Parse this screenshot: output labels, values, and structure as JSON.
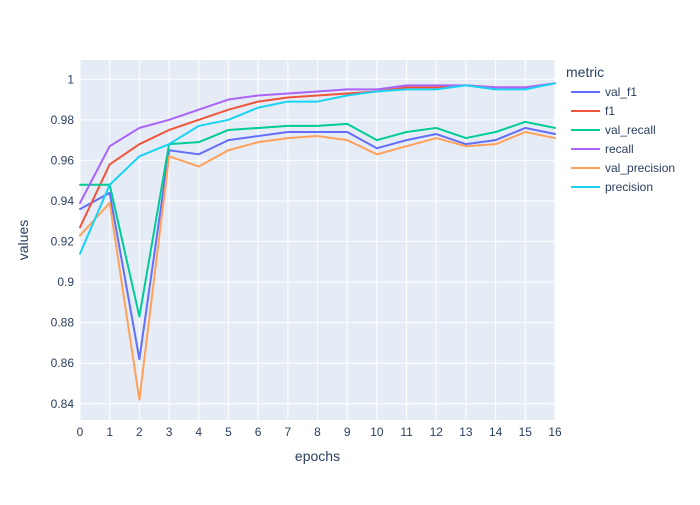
{
  "chart_data": {
    "type": "line",
    "title": "",
    "xlabel": "epochs",
    "ylabel": "values",
    "legend_title": "metric",
    "legend_placement": "right",
    "grid": true,
    "plot_bg": "#e5ecf6",
    "xlim": [
      0,
      16
    ],
    "ylim": [
      0.832,
      1.0095
    ],
    "x": [
      0,
      1,
      2,
      3,
      4,
      5,
      6,
      7,
      8,
      9,
      10,
      11,
      12,
      13,
      14,
      15,
      16
    ],
    "x_ticks": [
      "0",
      "1",
      "2",
      "3",
      "4",
      "5",
      "6",
      "7",
      "8",
      "9",
      "10",
      "11",
      "12",
      "13",
      "14",
      "15",
      "16"
    ],
    "y_ticks": [
      0.84,
      0.86,
      0.88,
      0.9,
      0.92,
      0.94,
      0.96,
      0.98,
      1.0
    ],
    "y_tick_labels": [
      "0.84",
      "0.86",
      "0.88",
      "0.9",
      "0.92",
      "0.94",
      "0.96",
      "0.98",
      "1"
    ],
    "series": [
      {
        "name": "val_f1",
        "color": "#636efa",
        "values": [
          0.936,
          0.944,
          0.862,
          0.965,
          0.963,
          0.97,
          0.972,
          0.974,
          0.974,
          0.974,
          0.966,
          0.97,
          0.973,
          0.968,
          0.97,
          0.976,
          0.973
        ]
      },
      {
        "name": "f1",
        "color": "#ef553b",
        "values": [
          0.927,
          0.958,
          0.968,
          0.975,
          0.98,
          0.985,
          0.989,
          0.991,
          0.992,
          0.993,
          0.994,
          0.996,
          0.996,
          0.997,
          0.996,
          0.996,
          0.998
        ]
      },
      {
        "name": "val_recall",
        "color": "#00cc96",
        "values": [
          0.948,
          0.948,
          0.883,
          0.968,
          0.969,
          0.975,
          0.976,
          0.977,
          0.977,
          0.978,
          0.97,
          0.974,
          0.976,
          0.971,
          0.974,
          0.979,
          0.976
        ]
      },
      {
        "name": "recall",
        "color": "#ab63fa",
        "values": [
          0.939,
          0.967,
          0.976,
          0.98,
          0.985,
          0.99,
          0.992,
          0.993,
          0.994,
          0.995,
          0.995,
          0.997,
          0.997,
          0.997,
          0.996,
          0.996,
          0.998
        ]
      },
      {
        "name": "val_precision",
        "color": "#ffa15a",
        "values": [
          0.923,
          0.939,
          0.842,
          0.962,
          0.957,
          0.965,
          0.969,
          0.971,
          0.972,
          0.97,
          0.963,
          0.967,
          0.971,
          0.967,
          0.968,
          0.974,
          0.971
        ]
      },
      {
        "name": "precision",
        "color": "#19d3f3",
        "values": [
          0.914,
          0.948,
          0.962,
          0.968,
          0.977,
          0.98,
          0.986,
          0.989,
          0.989,
          0.992,
          0.994,
          0.995,
          0.995,
          0.997,
          0.995,
          0.995,
          0.998
        ]
      }
    ]
  }
}
